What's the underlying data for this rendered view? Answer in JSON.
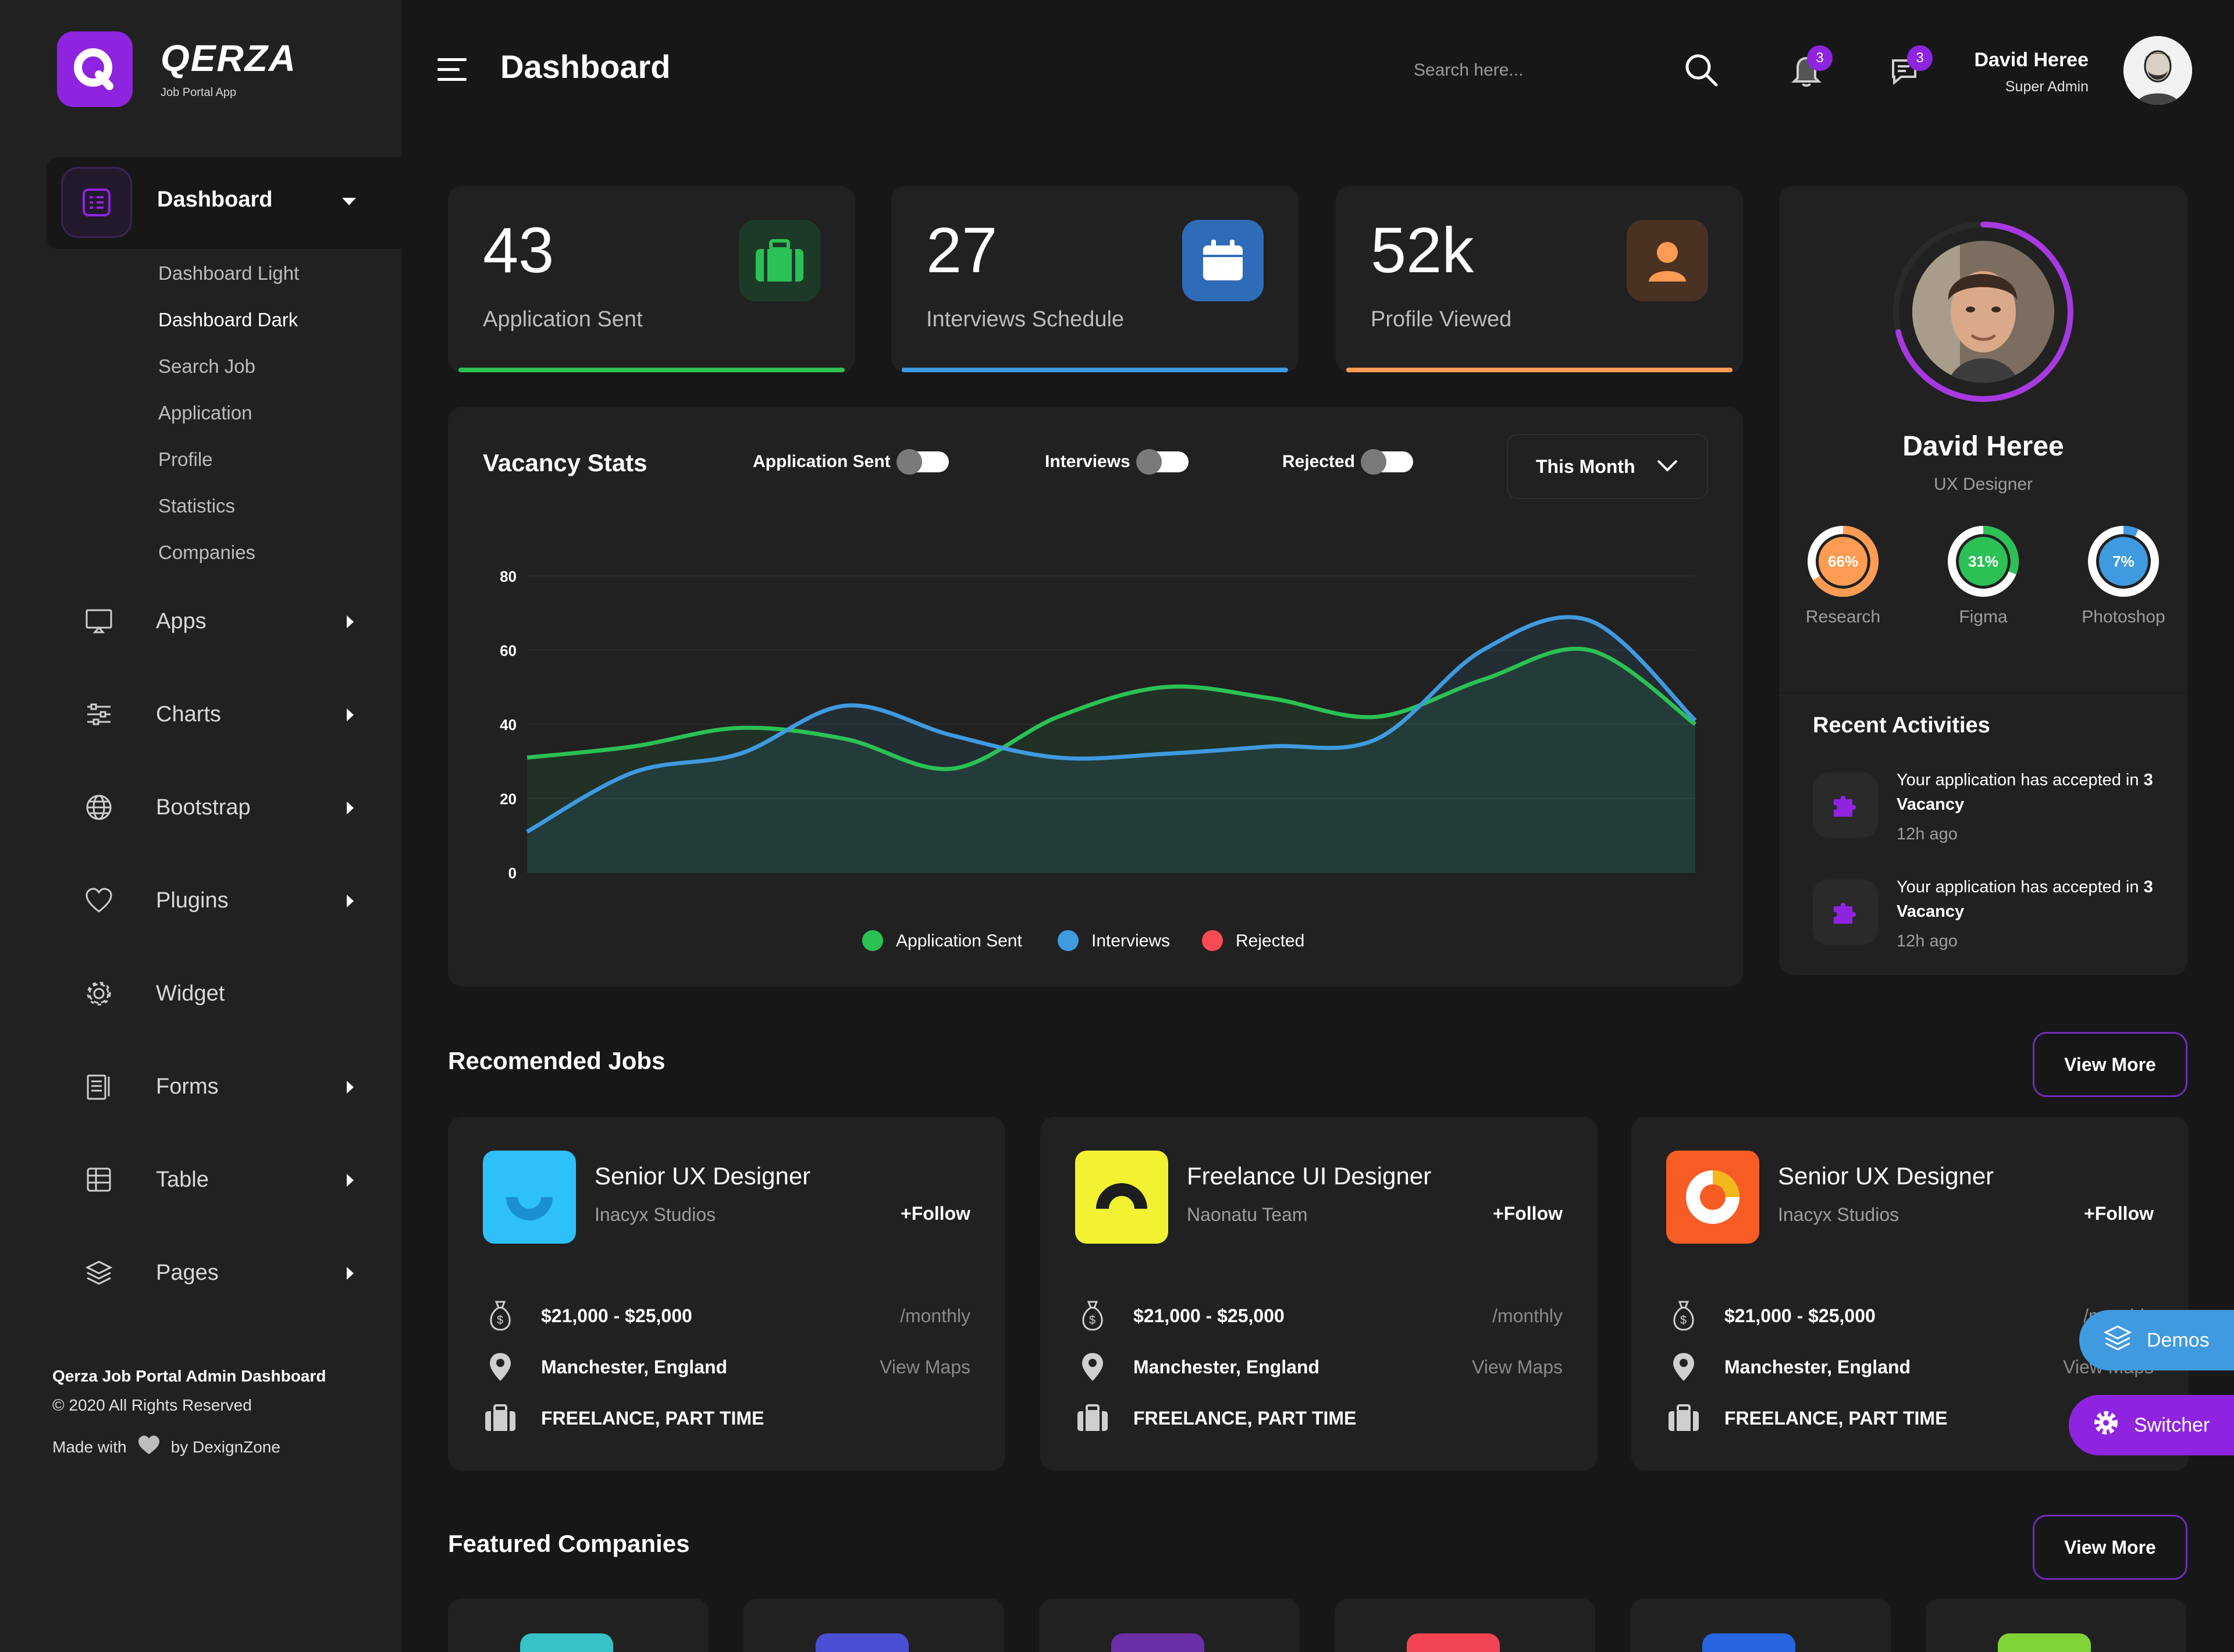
{
  "app": {
    "name": "QERZA",
    "tagline": "Job Portal App",
    "logo_letter": "Q",
    "accent": "#8f24e0"
  },
  "sidebar": {
    "active": {
      "label": "Dashboard",
      "icon": "dashboard-icon"
    },
    "submenu": [
      "Dashboard Light",
      "Dashboard Dark",
      "Search Job",
      "Application",
      "Profile",
      "Statistics",
      "Companies"
    ],
    "current_submenu": "Dashboard Dark",
    "items": [
      {
        "label": "Apps",
        "icon": "monitor-icon",
        "has_arrow": true
      },
      {
        "label": "Charts",
        "icon": "sliders-icon",
        "has_arrow": true
      },
      {
        "label": "Bootstrap",
        "icon": "globe-icon",
        "has_arrow": true
      },
      {
        "label": "Plugins",
        "icon": "heart-icon",
        "has_arrow": true
      },
      {
        "label": "Widget",
        "icon": "gear-icon",
        "has_arrow": false
      },
      {
        "label": "Forms",
        "icon": "clipboard-icon",
        "has_arrow": true
      },
      {
        "label": "Table",
        "icon": "table-icon",
        "has_arrow": true
      },
      {
        "label": "Pages",
        "icon": "layers-icon",
        "has_arrow": true
      }
    ],
    "footer": {
      "title": "Qerza Job Portal Admin Dashboard",
      "copyright": "© 2020 All Rights Reserved",
      "made_prefix": "Made with",
      "made_suffix": "by DexignZone"
    }
  },
  "header": {
    "title": "Dashboard",
    "search_placeholder": "Search here...",
    "notifications_count": "3",
    "messages_count": "3",
    "user": {
      "name": "David Heree",
      "role": "Super Admin"
    }
  },
  "stats": [
    {
      "value": "43",
      "label": "Application Sent",
      "icon": "briefcase-icon",
      "color": "#2bc155",
      "icon_bg": "#1c3a27"
    },
    {
      "value": "27",
      "label": "Interviews Schedule",
      "icon": "calendar-icon",
      "color": "#3f9ae0",
      "icon_bg": "#2f6cb8"
    },
    {
      "value": "52k",
      "label": "Profile Viewed",
      "icon": "user-icon",
      "color": "#ff9b52",
      "icon_bg": "#4a3222"
    }
  ],
  "vacancy": {
    "title": "Vacancy Stats",
    "toggles": [
      "Application Sent",
      "Interviews",
      "Rejected"
    ],
    "period": "This Month",
    "legend": [
      {
        "label": "Application Sent",
        "color": "#2bc155"
      },
      {
        "label": "Interviews",
        "color": "#3f9ae0"
      },
      {
        "label": "Rejected",
        "color": "#f94b54"
      }
    ]
  },
  "chart_data": {
    "type": "line",
    "title": "Vacancy Stats",
    "xlabel": "",
    "ylabel": "",
    "ylim": [
      0,
      80
    ],
    "yticks": [
      0,
      20,
      40,
      60,
      80
    ],
    "x": [
      0,
      1,
      2,
      3,
      4,
      5,
      6,
      7,
      8,
      9,
      10,
      11
    ],
    "grid": true,
    "legend_position": "bottom",
    "series": [
      {
        "name": "Application Sent",
        "color": "#2bc155",
        "values": [
          31,
          34,
          39,
          36,
          28,
          42,
          50,
          47,
          42,
          52,
          60,
          40
        ]
      },
      {
        "name": "Interviews",
        "color": "#3f9ae0",
        "values": [
          11,
          27,
          32,
          45,
          37,
          31,
          32,
          34,
          36,
          60,
          68,
          41
        ]
      }
    ]
  },
  "profile": {
    "name": "David Heree",
    "role": "UX Designer",
    "skills": [
      {
        "name": "Research",
        "percent": 66,
        "label": "66%",
        "color": "#ff9b52"
      },
      {
        "name": "Figma",
        "percent": 31,
        "label": "31%",
        "color": "#2bc155"
      },
      {
        "name": "Photoshop",
        "percent": 7,
        "label": "7%",
        "color": "#3f9ae0"
      }
    ],
    "recent_title": "Recent Activities",
    "activities": [
      {
        "text": "Your application has accepted in",
        "bold": "3 Vacancy",
        "time": "12h ago"
      },
      {
        "text": "Your application has accepted in",
        "bold": "3 Vacancy",
        "time": "12h ago"
      }
    ]
  },
  "jobs": {
    "title": "Recomended Jobs",
    "view_more": "View More",
    "items": [
      {
        "title": "Senior UX Designer",
        "company": "Inacyx Studios",
        "follow": "+Follow",
        "salary": "$21,000 - $25,000",
        "period": "/monthly",
        "location": "Manchester, England",
        "maps": "View Maps",
        "type": "FREELANCE, PART TIME",
        "logo_color": "#2ec0f9"
      },
      {
        "title": "Freelance UI Designer",
        "company": "Naonatu Team",
        "follow": "+Follow",
        "salary": "$21,000 - $25,000",
        "period": "/monthly",
        "location": "Manchester, England",
        "maps": "View Maps",
        "type": "FREELANCE, PART TIME",
        "logo_color": "#f2f233"
      },
      {
        "title": "Senior UX Designer",
        "company": "Inacyx Studios",
        "follow": "+Follow",
        "salary": "$21,000 - $25,000",
        "period": "/monthly",
        "location": "Manchester, England",
        "maps": "View Maps",
        "type": "FREELANCE, PART TIME",
        "logo_color": "#f75c25"
      }
    ]
  },
  "floating": {
    "demos": "Demos",
    "switcher": "Switcher"
  },
  "companies": {
    "title": "Featured Companies",
    "view_more": "View More",
    "logo_colors": [
      "#36c2c6",
      "#4a4fd6",
      "#6b2fa8",
      "#f24452",
      "#2764e0",
      "#7fd336"
    ]
  }
}
